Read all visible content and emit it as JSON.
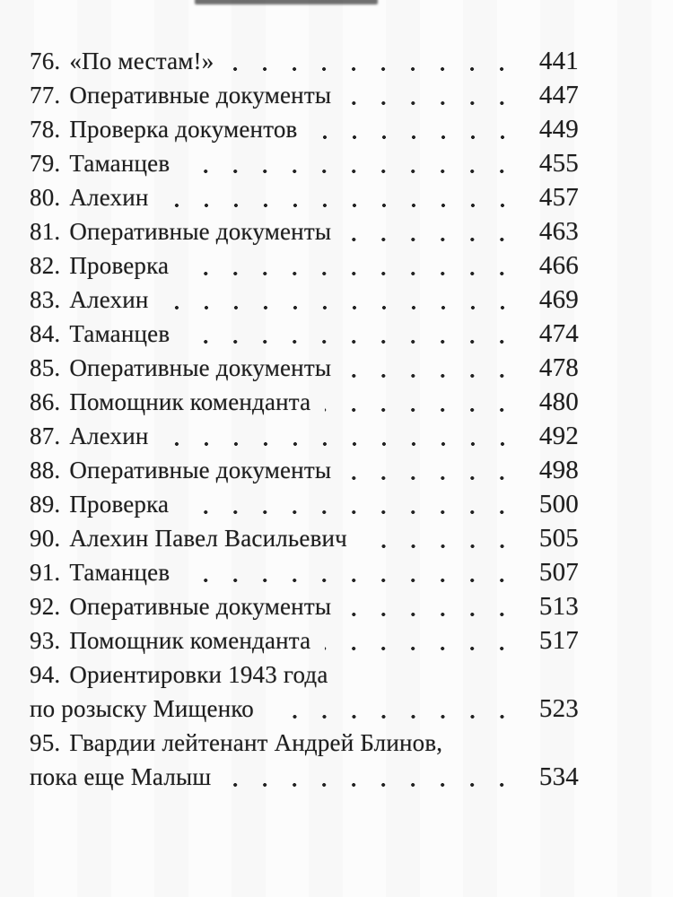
{
  "colors": {
    "background": "#fcfcfc",
    "text": "#1e1e1e",
    "dot_leader": "#232323",
    "top_artifact": "#6f6f6f"
  },
  "toc": {
    "entries": [
      {
        "num": "76.",
        "title": "«По местам!»",
        "page": "441"
      },
      {
        "num": "77.",
        "title": "Оперативные документы",
        "page": "447"
      },
      {
        "num": "78.",
        "title": "Проверка документов",
        "page": "449"
      },
      {
        "num": "79.",
        "title": "Таманцев",
        "page": "455"
      },
      {
        "num": "80.",
        "title": "Алехин",
        "page": "457"
      },
      {
        "num": "81.",
        "title": "Оперативные документы",
        "page": "463"
      },
      {
        "num": "82.",
        "title": "Проверка",
        "page": "466"
      },
      {
        "num": "83.",
        "title": "Алехин",
        "page": "469"
      },
      {
        "num": "84.",
        "title": "Таманцев",
        "page": "474"
      },
      {
        "num": "85.",
        "title": "Оперативные документы",
        "page": "478"
      },
      {
        "num": "86.",
        "title": "Помощник коменданта",
        "page": "480"
      },
      {
        "num": "87.",
        "title": "Алехин",
        "page": "492"
      },
      {
        "num": "88.",
        "title": "Оперативные документы",
        "page": "498"
      },
      {
        "num": "89.",
        "title": "Проверка",
        "page": "500"
      },
      {
        "num": "90.",
        "title": "Алехин Павел Васильевич",
        "page": "505"
      },
      {
        "num": "91.",
        "title": "Таманцев",
        "page": "507"
      },
      {
        "num": "92.",
        "title": "Оперативные документы",
        "page": "513"
      },
      {
        "num": "93.",
        "title": "Помощник коменданта",
        "page": "517"
      },
      {
        "num": "94.",
        "title": "Ориентировки 1943 года",
        "title2": "по розыску Мищенко",
        "page": "523"
      },
      {
        "num": "95.",
        "title": "Гвардии лейтенант Андрей Блинов,",
        "title2": "пока еще Малыш",
        "page": "534"
      }
    ]
  }
}
